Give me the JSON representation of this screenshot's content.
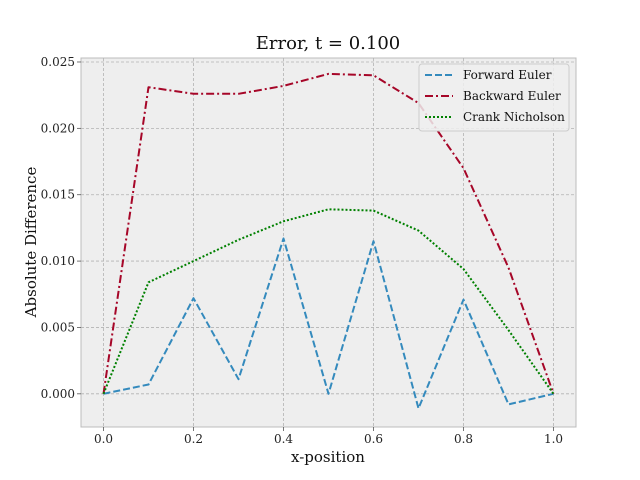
{
  "chart_data": {
    "type": "line",
    "title": "Error, t = 0.100",
    "xlabel": "x-position",
    "ylabel": "Absolute Difference",
    "xlim": [
      -0.05,
      1.05
    ],
    "ylim": [
      -0.0025,
      0.0253
    ],
    "grid": true,
    "legend_position": "top-right",
    "x_ticks": [
      0.0,
      0.2,
      0.4,
      0.6,
      0.8,
      1.0
    ],
    "x_tick_labels": [
      "0.0",
      "0.2",
      "0.4",
      "0.6",
      "0.8",
      "1.0"
    ],
    "y_ticks": [
      0.0,
      0.005,
      0.01,
      0.015,
      0.02,
      0.025
    ],
    "y_tick_labels": [
      "0.000",
      "0.005",
      "0.010",
      "0.015",
      "0.020",
      "0.025"
    ],
    "x": [
      0.0,
      0.1,
      0.2,
      0.3,
      0.4,
      0.5,
      0.6,
      0.7,
      0.8,
      0.9,
      1.0
    ],
    "series": [
      {
        "name": "Forward Euler",
        "color": "#348abd",
        "style": "dashed",
        "values": [
          0.0,
          0.0007,
          0.0072,
          0.0011,
          0.0117,
          0.0,
          0.0115,
          -0.0011,
          0.0071,
          -0.0008,
          0.0
        ]
      },
      {
        "name": "Backward Euler",
        "color": "#a60628",
        "style": "dashdot",
        "values": [
          0.0,
          0.0231,
          0.0226,
          0.0226,
          0.0232,
          0.0241,
          0.024,
          0.0219,
          0.017,
          0.0095,
          0.0
        ]
      },
      {
        "name": "Crank Nicholson",
        "color": "#008000",
        "style": "dotted",
        "values": [
          0.0,
          0.0084,
          0.01,
          0.0116,
          0.013,
          0.0139,
          0.0138,
          0.0123,
          0.0094,
          0.0048,
          0.0
        ]
      }
    ]
  }
}
